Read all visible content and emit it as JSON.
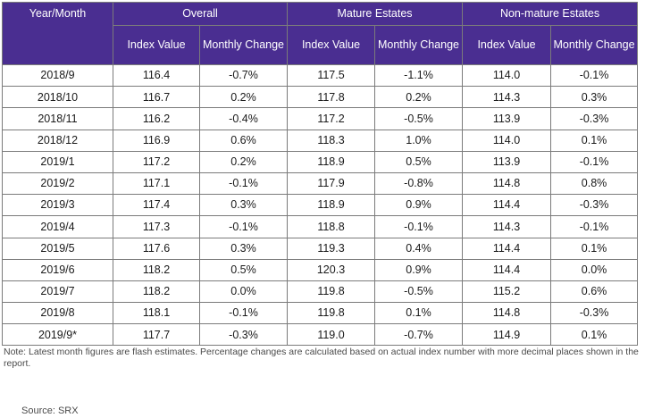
{
  "table": {
    "headers": {
      "year_month": "Year/Month",
      "overall": "Overall",
      "mature": "Mature Estates",
      "non_mature": "Non-mature Estates",
      "index_value": "Index Value",
      "monthly_change": "Monthly Change"
    },
    "colors": {
      "header_background": "#4a2e91",
      "header_text": "#ffffff"
    },
    "rows": [
      {
        "month": "2018/9",
        "overall_index": "116.4",
        "overall_change": "-0.7%",
        "mature_index": "117.5",
        "mature_change": "-1.1%",
        "nonmature_index": "114.0",
        "nonmature_change": "-0.1%"
      },
      {
        "month": "2018/10",
        "overall_index": "116.7",
        "overall_change": "0.2%",
        "mature_index": "117.8",
        "mature_change": "0.2%",
        "nonmature_index": "114.3",
        "nonmature_change": "0.3%"
      },
      {
        "month": "2018/11",
        "overall_index": "116.2",
        "overall_change": "-0.4%",
        "mature_index": "117.2",
        "mature_change": "-0.5%",
        "nonmature_index": "113.9",
        "nonmature_change": "-0.3%"
      },
      {
        "month": "2018/12",
        "overall_index": "116.9",
        "overall_change": "0.6%",
        "mature_index": "118.3",
        "mature_change": "1.0%",
        "nonmature_index": "114.0",
        "nonmature_change": "0.1%"
      },
      {
        "month": "2019/1",
        "overall_index": "117.2",
        "overall_change": "0.2%",
        "mature_index": "118.9",
        "mature_change": "0.5%",
        "nonmature_index": "113.9",
        "nonmature_change": "-0.1%"
      },
      {
        "month": "2019/2",
        "overall_index": "117.1",
        "overall_change": "-0.1%",
        "mature_index": "117.9",
        "mature_change": "-0.8%",
        "nonmature_index": "114.8",
        "nonmature_change": "0.8%"
      },
      {
        "month": "2019/3",
        "overall_index": "117.4",
        "overall_change": "0.3%",
        "mature_index": "118.9",
        "mature_change": "0.9%",
        "nonmature_index": "114.4",
        "nonmature_change": "-0.3%"
      },
      {
        "month": "2019/4",
        "overall_index": "117.3",
        "overall_change": "-0.1%",
        "mature_index": "118.8",
        "mature_change": "-0.1%",
        "nonmature_index": "114.3",
        "nonmature_change": "-0.1%"
      },
      {
        "month": "2019/5",
        "overall_index": "117.6",
        "overall_change": "0.3%",
        "mature_index": "119.3",
        "mature_change": "0.4%",
        "nonmature_index": "114.4",
        "nonmature_change": "0.1%"
      },
      {
        "month": "2019/6",
        "overall_index": "118.2",
        "overall_change": "0.5%",
        "mature_index": "120.3",
        "mature_change": "0.9%",
        "nonmature_index": "114.4",
        "nonmature_change": "0.0%"
      },
      {
        "month": "2019/7",
        "overall_index": "118.2",
        "overall_change": "0.0%",
        "mature_index": "119.8",
        "mature_change": "-0.5%",
        "nonmature_index": "115.2",
        "nonmature_change": "0.6%"
      },
      {
        "month": "2019/8",
        "overall_index": "118.1",
        "overall_change": "-0.1%",
        "mature_index": "119.8",
        "mature_change": "0.1%",
        "nonmature_index": "114.8",
        "nonmature_change": "-0.3%"
      },
      {
        "month": "2019/9*",
        "overall_index": "117.7",
        "overall_change": "-0.3%",
        "mature_index": "119.0",
        "mature_change": "-0.7%",
        "nonmature_index": "114.9",
        "nonmature_change": "0.1%"
      }
    ]
  },
  "note": "Note: Latest month figures are flash estimates. Percentage changes are calculated based on actual index number with more decimal places shown in the report.",
  "source": "Source: SRX"
}
